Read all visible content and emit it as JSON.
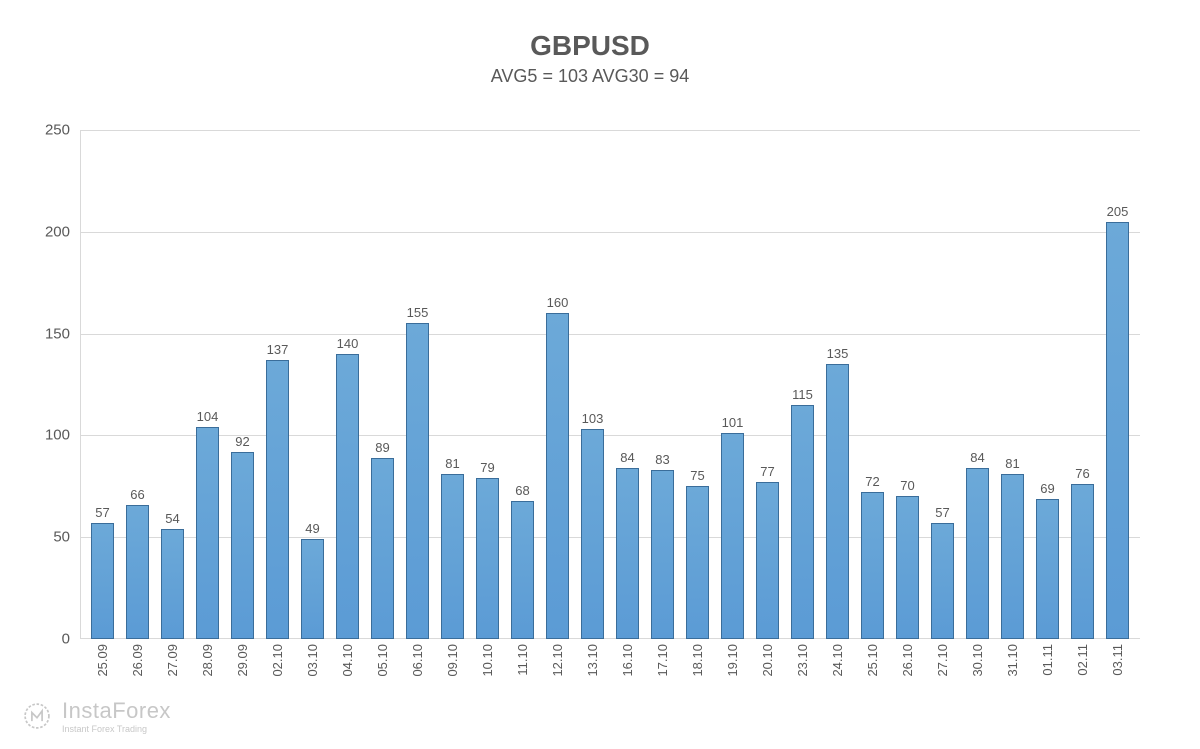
{
  "chart": {
    "type": "bar",
    "title": "GBPUSD",
    "subtitle": "AVG5 = 103 AVG30 = 94",
    "title_fontsize": 28,
    "title_color": "#595959",
    "subtitle_fontsize": 18,
    "ylim": [
      0,
      250
    ],
    "ytick_step": 50,
    "yticks": [
      0,
      50,
      100,
      150,
      200,
      250
    ],
    "background_color": "#ffffff",
    "grid_color": "#d9d9d9",
    "axis_color": "#d9d9d9",
    "bar_color": "#5b9bd5",
    "bar_border_color": "#3a6d9a",
    "bar_width": 0.7,
    "label_color": "#595959",
    "label_fontsize": 13,
    "axis_fontsize": 15,
    "categories": [
      "25.09",
      "26.09",
      "27.09",
      "28.09",
      "29.09",
      "02.10",
      "03.10",
      "04.10",
      "05.10",
      "06.10",
      "09.10",
      "10.10",
      "11.10",
      "12.10",
      "13.10",
      "16.10",
      "17.10",
      "18.10",
      "19.10",
      "20.10",
      "23.10",
      "24.10",
      "25.10",
      "26.10",
      "27.10",
      "30.10",
      "31.10",
      "01.11",
      "02.11",
      "03.11"
    ],
    "values": [
      57,
      66,
      54,
      104,
      92,
      137,
      49,
      140,
      89,
      155,
      81,
      79,
      68,
      160,
      103,
      84,
      83,
      75,
      101,
      77,
      115,
      135,
      72,
      70,
      57,
      84,
      81,
      69,
      76,
      205
    ]
  },
  "watermark": {
    "brand": "InstaForex",
    "tagline": "Instant Forex Trading"
  }
}
